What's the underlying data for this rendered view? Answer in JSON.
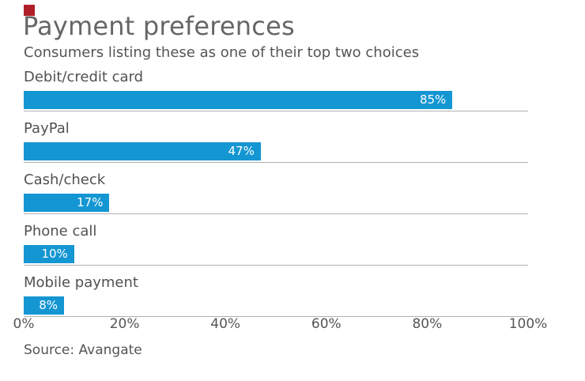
{
  "brand": {
    "mark_color": "#b01e28"
  },
  "header": {
    "title": "Payment preferences",
    "subtitle": "Consumers listing these as one of their top two choices"
  },
  "footer": {
    "source": "Source: Avangate"
  },
  "chart_data": {
    "type": "bar",
    "orientation": "horizontal",
    "title": "Payment preferences",
    "subtitle": "Consumers listing these as one of their top two choices",
    "categories": [
      "Debit/credit card",
      "PayPal",
      "Cash/check",
      "Phone call",
      "Mobile payment"
    ],
    "values": [
      85,
      47,
      17,
      10,
      8
    ],
    "value_labels": [
      "85%",
      "47%",
      "17%",
      "10%",
      "8%"
    ],
    "x_ticks": [
      "0%",
      "20%",
      "40%",
      "60%",
      "80%",
      "100%"
    ],
    "x_tick_values": [
      0,
      20,
      40,
      60,
      80,
      100
    ],
    "xlim": [
      0,
      100
    ],
    "grid": "baseline-per-category",
    "legend": "none",
    "bar_color": "#1496d3",
    "value_label_color": "#ffffff",
    "baseline_color": "#b0b0b0",
    "source": "Source: Avangate"
  }
}
